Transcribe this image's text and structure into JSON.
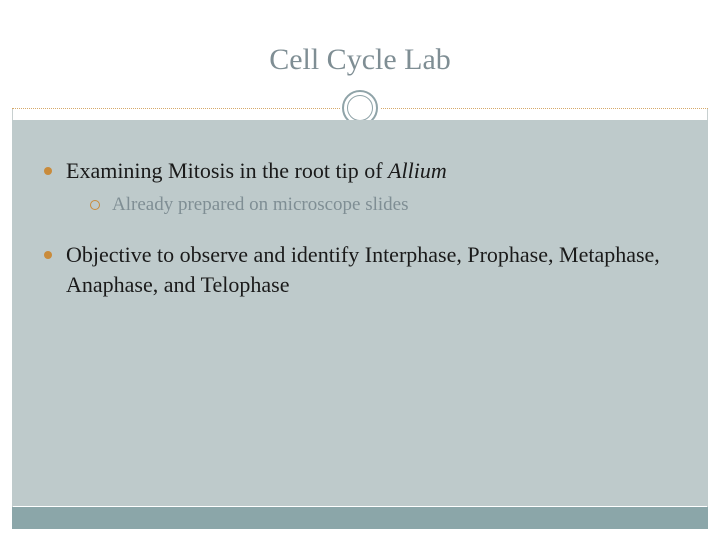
{
  "slide": {
    "title": "Cell Cycle Lab",
    "bullets": [
      {
        "text_prefix": "Examining Mitosis in the root tip of ",
        "text_italic": "Allium",
        "sub": [
          {
            "text": "Already prepared on microscope slides"
          }
        ]
      },
      {
        "text": "Objective to observe and identify Interphase, Prophase, Metaphase, Anaphase, and Telophase",
        "sub": []
      }
    ]
  },
  "style": {
    "title_color": "#7f8e94",
    "title_fontsize": 30,
    "body_bg": "#becacb",
    "bottom_bar_bg": "#8ba6a9",
    "bullet_filled_color": "#c98b3b",
    "bullet_hollow_color": "#c98b3b",
    "level1_fontsize": 22,
    "level1_color": "#1a1a1a",
    "level2_fontsize": 19,
    "level2_color": "#7f8e94",
    "circle_color": "#8fa3a8",
    "dotted_color": "#d6a96a",
    "border_color": "#c8d0d0",
    "slide_width": 720,
    "slide_height": 540
  }
}
